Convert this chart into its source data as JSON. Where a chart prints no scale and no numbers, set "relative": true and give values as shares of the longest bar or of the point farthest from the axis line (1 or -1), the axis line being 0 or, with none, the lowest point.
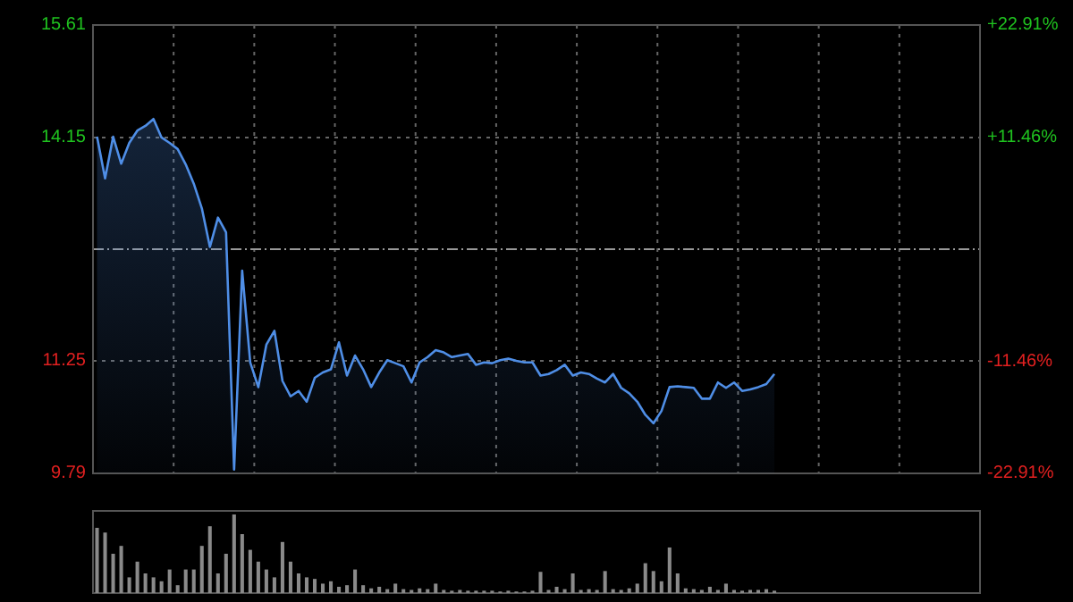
{
  "chart_data": [
    {
      "type": "area",
      "categories": [
        null,
        null,
        null,
        null,
        null,
        null,
        null,
        null,
        null,
        null,
        null,
        null,
        null,
        null,
        null,
        null,
        null,
        null,
        null,
        null,
        null,
        null,
        null,
        null,
        null,
        null,
        null,
        null,
        null,
        null,
        null,
        null,
        null,
        null,
        null,
        null,
        null,
        null,
        null,
        null,
        null,
        null,
        null,
        null,
        null,
        null,
        null,
        null,
        null,
        null,
        null,
        null,
        null,
        null,
        null,
        null,
        null,
        null,
        null,
        null,
        null,
        null,
        null,
        null,
        null,
        null,
        null,
        null,
        null,
        null,
        null,
        null,
        null,
        null,
        null,
        null,
        null,
        null,
        null,
        null,
        null,
        null,
        null,
        null,
        null
      ],
      "series": [
        {
          "color": "#4f8ee6",
          "values": [
            14.16,
            13.62,
            14.16,
            13.81,
            14.08,
            14.24,
            14.3,
            14.39,
            14.15,
            14.08,
            14.0,
            13.8,
            13.55,
            13.23,
            12.73,
            13.11,
            12.92,
            9.84,
            12.42,
            11.23,
            10.91,
            11.46,
            11.64,
            10.99,
            10.79,
            10.86,
            10.72,
            11.03,
            11.1,
            11.14,
            11.49,
            11.06,
            11.32,
            11.14,
            10.91,
            11.1,
            11.26,
            11.22,
            11.18,
            10.97,
            11.23,
            11.3,
            11.39,
            11.36,
            11.3,
            11.32,
            11.34,
            11.2,
            11.23,
            11.22,
            11.26,
            11.28,
            11.25,
            11.23,
            11.23,
            11.06,
            11.08,
            11.13,
            11.2,
            11.06,
            11.1,
            11.08,
            11.02,
            10.97,
            11.08,
            10.9,
            10.83,
            10.72,
            10.55,
            10.44,
            10.6,
            10.91,
            10.92,
            10.91,
            10.9,
            10.76,
            10.76,
            10.97,
            10.9,
            10.97,
            10.86,
            10.88,
            10.91,
            10.95,
            11.08
          ]
        }
      ],
      "ylim": [
        9.79,
        15.61
      ],
      "yticks": [
        9.79,
        11.25,
        14.15,
        15.61
      ],
      "y2lim": [
        -22.91,
        22.91
      ],
      "y2ticks": [
        {
          "value": -22.91,
          "label": "-22.91%"
        },
        {
          "value": -11.46,
          "label": "-11.46%"
        },
        {
          "value": 11.46,
          "label": "+11.46%"
        },
        {
          "value": 22.91,
          "label": "+22.91%"
        }
      ],
      "ref_lines": [
        {
          "axis": "y",
          "value": 12.7,
          "color": "#999999",
          "line_style": "dashed"
        }
      ],
      "grid": true
    },
    {
      "type": "bar",
      "relative": true,
      "categories": [
        null,
        null,
        null,
        null,
        null,
        null,
        null,
        null,
        null,
        null,
        null,
        null,
        null,
        null,
        null,
        null,
        null,
        null,
        null,
        null,
        null,
        null,
        null,
        null,
        null,
        null,
        null,
        null,
        null,
        null,
        null,
        null,
        null,
        null,
        null,
        null,
        null,
        null,
        null,
        null,
        null,
        null,
        null,
        null,
        null,
        null,
        null,
        null,
        null,
        null,
        null,
        null,
        null,
        null,
        null,
        null,
        null,
        null,
        null,
        null,
        null,
        null,
        null,
        null,
        null,
        null,
        null,
        null,
        null,
        null,
        null,
        null,
        null,
        null,
        null,
        null,
        null,
        null,
        null,
        null,
        null,
        null,
        null,
        null,
        null
      ],
      "color": "#8a8a8a",
      "values": [
        0.83,
        0.77,
        0.5,
        0.6,
        0.2,
        0.4,
        0.25,
        0.2,
        0.15,
        0.3,
        0.1,
        0.3,
        0.3,
        0.6,
        0.85,
        0.25,
        0.5,
        1.0,
        0.75,
        0.55,
        0.4,
        0.3,
        0.2,
        0.65,
        0.4,
        0.25,
        0.2,
        0.18,
        0.12,
        0.15,
        0.08,
        0.1,
        0.3,
        0.1,
        0.06,
        0.08,
        0.05,
        0.12,
        0.05,
        0.04,
        0.06,
        0.05,
        0.12,
        0.04,
        0.03,
        0.04,
        0.03,
        0.03,
        0.03,
        0.03,
        0.02,
        0.03,
        0.02,
        0.02,
        0.03,
        0.27,
        0.04,
        0.08,
        0.05,
        0.25,
        0.04,
        0.05,
        0.04,
        0.28,
        0.05,
        0.04,
        0.06,
        0.12,
        0.38,
        0.28,
        0.15,
        0.58,
        0.25,
        0.06,
        0.05,
        0.04,
        0.08,
        0.04,
        0.12,
        0.04,
        0.03,
        0.04,
        0.04,
        0.05,
        0.03
      ]
    }
  ]
}
